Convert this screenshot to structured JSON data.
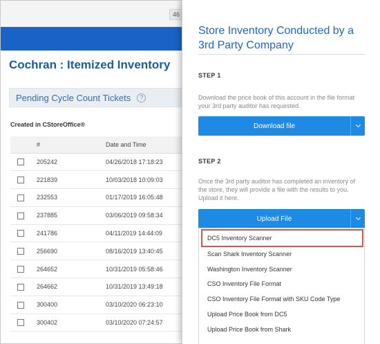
{
  "background": {
    "page_counter": "46 |",
    "page_title": "Cochran : Itemized Inventory",
    "pending_label": "Pending Cycle Count Tickets",
    "help_icon": "question-circle-icon",
    "created_label": "Created in CStoreOffice®",
    "table": {
      "headers": [
        "",
        "#",
        "Date and Time"
      ],
      "rows": [
        {
          "num": "205242",
          "datetime": "04/26/2018 17:18:23"
        },
        {
          "num": "221839",
          "datetime": "10/03/2018 10:09:03"
        },
        {
          "num": "232553",
          "datetime": "01/17/2019 16:05:48"
        },
        {
          "num": "237885",
          "datetime": "03/06/2019 09:58:34"
        },
        {
          "num": "241786",
          "datetime": "04/11/2019 14:44:09"
        },
        {
          "num": "256690",
          "datetime": "08/16/2019 13:40:45"
        },
        {
          "num": "264652",
          "datetime": "10/31/2019 05:58:46"
        },
        {
          "num": "264662",
          "datetime": "10/31/2019 13:49:18"
        },
        {
          "num": "300400",
          "datetime": "03/10/2020 06:23:10"
        },
        {
          "num": "300402",
          "datetime": "03/10/2020 07:24:57"
        }
      ]
    }
  },
  "panel": {
    "title": "Store Inventory Conducted by a 3rd Party Company",
    "step1": {
      "label": "STEP 1",
      "text": "Download the price book of this account in the file format your 3rd party auditor has requested.",
      "button": "Download file"
    },
    "step2": {
      "label": "STEP 2",
      "text": "Once the 3rd party auditor has completed an inventory of the store, they will provide a file with the results to you. Upload it here.",
      "button": "Upload File"
    },
    "menu": [
      "DC5 Inventory Scanner",
      "Scan Shark Inventory Scanner",
      "Washington Inventory Scanner",
      "CSO Inventory File Format",
      "CSO Inventory File Format with SKU Code Type",
      "Upload Price Book from DC5",
      "Upload Price Book from Shark"
    ],
    "highlight_color": "#d9534f",
    "button_color": "#1f8ae3"
  }
}
